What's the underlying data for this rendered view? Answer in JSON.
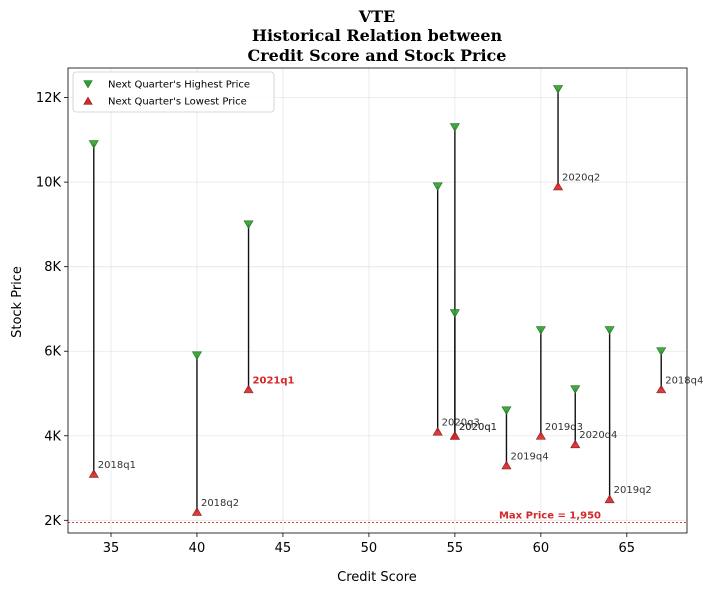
{
  "chart_data": {
    "type": "scatter",
    "title_lines": [
      "VTE",
      "Historical Relation between",
      "Credit Score and Stock Price"
    ],
    "xlabel": "Credit Score",
    "ylabel": "Stock Price",
    "xlim": [
      32.5,
      68.5
    ],
    "ylim": [
      1700,
      12700
    ],
    "x_ticks": [
      35,
      40,
      45,
      50,
      55,
      60,
      65
    ],
    "y_ticks": [
      {
        "value": 2000,
        "label": "2K"
      },
      {
        "value": 4000,
        "label": "4K"
      },
      {
        "value": 6000,
        "label": "6K"
      },
      {
        "value": 8000,
        "label": "8K"
      },
      {
        "value": 10000,
        "label": "10K"
      },
      {
        "value": 12000,
        "label": "12K"
      }
    ],
    "grid": true,
    "legend_position": "top-left",
    "series": [
      {
        "name": "Next Quarter's Highest Price",
        "marker": "triangle-down",
        "color": "#2ca02c"
      },
      {
        "name": "Next Quarter's Lowest Price",
        "marker": "triangle-up",
        "color": "#d62728"
      }
    ],
    "points": [
      {
        "label": "2018q1",
        "x": 34,
        "high": 10900,
        "low": 3100
      },
      {
        "label": "2018q2",
        "x": 40,
        "high": 5900,
        "low": 2200
      },
      {
        "label": "2021q1",
        "x": 43,
        "high": 9000,
        "low": 5100,
        "highlight": true
      },
      {
        "label": "2020q3",
        "x": 54,
        "high": 9900,
        "low": 4100
      },
      {
        "label": "2020q1",
        "x": 55,
        "high": 11300,
        "low": 4000
      },
      {
        "label": "2020q1",
        "x": 55,
        "high": 6900,
        "low": 4000
      },
      {
        "label": "2019q4",
        "x": 58,
        "high": 4600,
        "low": 3300
      },
      {
        "label": "2019q3",
        "x": 60,
        "high": 6500,
        "low": 4000
      },
      {
        "label": "2020q2",
        "x": 61,
        "high": 12200,
        "low": 9900
      },
      {
        "label": "2020q4",
        "x": 62,
        "high": 5100,
        "low": 3800
      },
      {
        "label": "2019q2",
        "x": 64,
        "high": 6500,
        "low": 2500
      },
      {
        "label": "2018q4",
        "x": 67,
        "high": 6000,
        "low": 5100
      }
    ],
    "reference_line": {
      "value": 1950,
      "label": "Max Price = 1,950",
      "color": "#d62728"
    }
  }
}
